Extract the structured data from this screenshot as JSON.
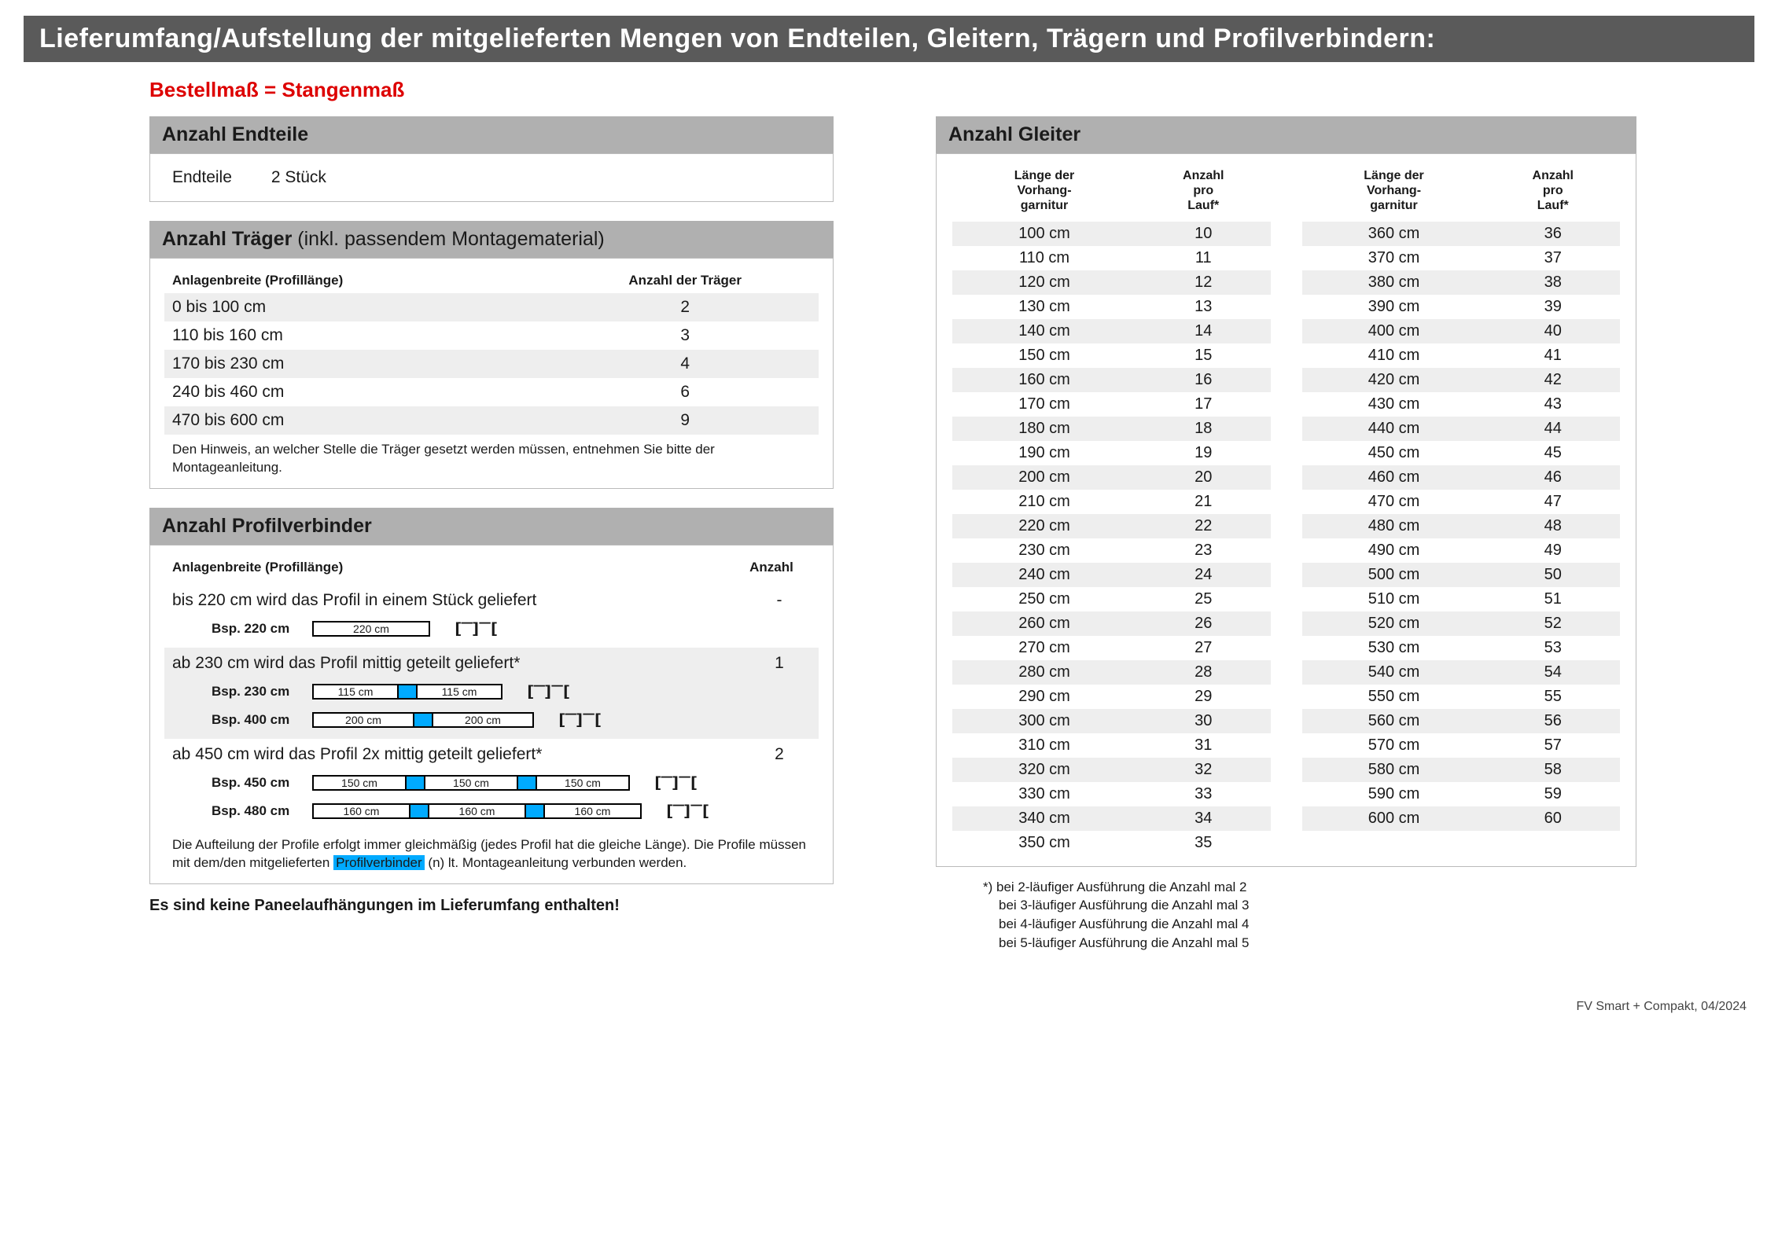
{
  "header": "Lieferumfang/Aufstellung der mitgelieferten Mengen von Endteilen, Gleitern, Trägern und Profilverbindern:",
  "subtitle": "Bestellmaß = Stangenmaß",
  "endteile": {
    "title": "Anzahl Endteile",
    "label": "Endteile",
    "value": "2 Stück"
  },
  "traeger": {
    "title": "Anzahl Träger",
    "title_suffix": "(inkl. passendem Montagematerial)",
    "col1": "Anlagenbreite (Profillänge)",
    "col2": "Anzahl der Träger",
    "rows": [
      {
        "a": "0 bis 100 cm",
        "b": "2"
      },
      {
        "a": "110 bis 160 cm",
        "b": "3"
      },
      {
        "a": "170 bis 230 cm",
        "b": "4"
      },
      {
        "a": "240 bis 460 cm",
        "b": "6"
      },
      {
        "a": "470 bis 600 cm",
        "b": "9"
      }
    ],
    "note": "Den Hinweis, an welcher Stelle die Träger gesetzt werden müssen, entnehmen Sie bitte der Montageanleitung."
  },
  "profil": {
    "title": "Anzahl Profilverbinder",
    "col1": "Anlagenbreite (Profillänge)",
    "col2": "Anzahl",
    "groups": [
      {
        "head": "bis 220 cm wird das Profil in einem Stück geliefert",
        "count": "-",
        "striped": false,
        "examples": [
          {
            "label": "Bsp. 220 cm",
            "segments": [
              "220 cm"
            ],
            "seg_widths": [
              150
            ]
          }
        ]
      },
      {
        "head": "ab 230 cm wird das Profil mittig geteilt geliefert*",
        "count": "1",
        "striped": true,
        "examples": [
          {
            "label": "Bsp. 230 cm",
            "segments": [
              "115 cm",
              "115 cm"
            ],
            "seg_widths": [
              110,
              110
            ]
          },
          {
            "label": "Bsp. 400 cm",
            "segments": [
              "200 cm",
              "200 cm"
            ],
            "seg_widths": [
              130,
              130
            ]
          }
        ]
      },
      {
        "head": "ab 450 cm wird das Profil 2x mittig geteilt geliefert*",
        "count": "2",
        "striped": false,
        "examples": [
          {
            "label": "Bsp. 450 cm",
            "segments": [
              "150 cm",
              "150 cm",
              "150 cm"
            ],
            "seg_widths": [
              120,
              120,
              120
            ]
          },
          {
            "label": "Bsp. 480 cm",
            "segments": [
              "160 cm",
              "160 cm",
              "160 cm"
            ],
            "seg_widths": [
              125,
              125,
              125
            ]
          }
        ]
      }
    ],
    "note_pre": "Die Aufteilung der Profile erfolgt immer gleichmäßig (jedes Profil hat die gleiche Länge). Die Profile müssen mit dem/den mitgelieferten",
    "note_hl": "Profilverbinder",
    "note_post": "(n) lt. Montageanleitung verbunden werden."
  },
  "no_panel": "Es sind keine Paneelaufhängungen im Lieferumfang enthalten!",
  "gleiter": {
    "title": "Anzahl Gleiter",
    "col1_l1": "Länge der",
    "col1_l2": "Vorhang-",
    "col1_l3": "garnitur",
    "col2_l1": "Anzahl",
    "col2_l2": "pro",
    "col2_l3": "Lauf*",
    "left": [
      {
        "a": "100 cm",
        "b": "10"
      },
      {
        "a": "110 cm",
        "b": "11"
      },
      {
        "a": "120 cm",
        "b": "12"
      },
      {
        "a": "130 cm",
        "b": "13"
      },
      {
        "a": "140 cm",
        "b": "14"
      },
      {
        "a": "150 cm",
        "b": "15"
      },
      {
        "a": "160 cm",
        "b": "16"
      },
      {
        "a": "170 cm",
        "b": "17"
      },
      {
        "a": "180 cm",
        "b": "18"
      },
      {
        "a": "190 cm",
        "b": "19"
      },
      {
        "a": "200 cm",
        "b": "20"
      },
      {
        "a": "210 cm",
        "b": "21"
      },
      {
        "a": "220 cm",
        "b": "22"
      },
      {
        "a": "230 cm",
        "b": "23"
      },
      {
        "a": "240 cm",
        "b": "24"
      },
      {
        "a": "250 cm",
        "b": "25"
      },
      {
        "a": "260 cm",
        "b": "26"
      },
      {
        "a": "270 cm",
        "b": "27"
      },
      {
        "a": "280 cm",
        "b": "28"
      },
      {
        "a": "290 cm",
        "b": "29"
      },
      {
        "a": "300 cm",
        "b": "30"
      },
      {
        "a": "310 cm",
        "b": "31"
      },
      {
        "a": "320 cm",
        "b": "32"
      },
      {
        "a": "330 cm",
        "b": "33"
      },
      {
        "a": "340 cm",
        "b": "34"
      },
      {
        "a": "350 cm",
        "b": "35"
      }
    ],
    "right": [
      {
        "a": "360 cm",
        "b": "36"
      },
      {
        "a": "370 cm",
        "b": "37"
      },
      {
        "a": "380 cm",
        "b": "38"
      },
      {
        "a": "390 cm",
        "b": "39"
      },
      {
        "a": "400 cm",
        "b": "40"
      },
      {
        "a": "410 cm",
        "b": "41"
      },
      {
        "a": "420 cm",
        "b": "42"
      },
      {
        "a": "430 cm",
        "b": "43"
      },
      {
        "a": "440 cm",
        "b": "44"
      },
      {
        "a": "450 cm",
        "b": "45"
      },
      {
        "a": "460 cm",
        "b": "46"
      },
      {
        "a": "470 cm",
        "b": "47"
      },
      {
        "a": "480 cm",
        "b": "48"
      },
      {
        "a": "490 cm",
        "b": "49"
      },
      {
        "a": "500 cm",
        "b": "50"
      },
      {
        "a": "510 cm",
        "b": "51"
      },
      {
        "a": "520 cm",
        "b": "52"
      },
      {
        "a": "530 cm",
        "b": "53"
      },
      {
        "a": "540 cm",
        "b": "54"
      },
      {
        "a": "550 cm",
        "b": "55"
      },
      {
        "a": "560 cm",
        "b": "56"
      },
      {
        "a": "570 cm",
        "b": "57"
      },
      {
        "a": "580 cm",
        "b": "58"
      },
      {
        "a": "590 cm",
        "b": "59"
      },
      {
        "a": "600 cm",
        "b": "60"
      }
    ],
    "note1": "*)  bei 2-läufiger Ausführung die Anzahl mal 2",
    "note2": "bei 3-läufiger Ausführung die Anzahl mal 3",
    "note3": "bei 4-läufiger Ausführung die Anzahl mal 4",
    "note4": "bei 5-läufiger Ausführung die Anzahl mal 5"
  },
  "footer": "FV Smart + Compakt, 04/2024",
  "colors": {
    "header_bg": "#5a5a5a",
    "section_bg": "#b0b0b0",
    "stripe_bg": "#eeeeee",
    "accent_red": "#dd0000",
    "connector_blue": "#00aaff"
  }
}
